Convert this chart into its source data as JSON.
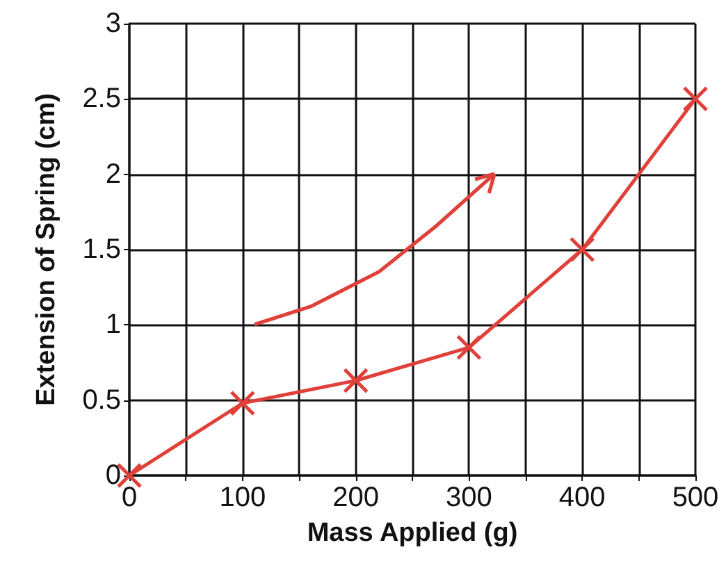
{
  "chart_data": {
    "type": "line",
    "xlabel": "Mass Applied (g)",
    "ylabel": "Extension of Spring (cm)",
    "x": [
      0,
      100,
      200,
      300,
      400,
      500
    ],
    "series": [
      {
        "color": "#e0403a",
        "values": [
          0,
          0.48,
          0.63,
          0.85,
          1.5,
          2.5
        ]
      }
    ],
    "xlim": [
      0,
      500
    ],
    "xticks": [
      0,
      {
        "value": 50,
        "label": null
      },
      100,
      {
        "value": 150,
        "label": null
      },
      200,
      {
        "value": 250,
        "label": null
      },
      300,
      {
        "value": 350,
        "label": null
      },
      400,
      {
        "value": 450,
        "label": null
      },
      500
    ],
    "ylim": [
      0,
      3
    ],
    "yticks": [
      0,
      0.5,
      1,
      1.5,
      2,
      2.5,
      3
    ],
    "grid": true,
    "marker": "cross",
    "line_style": "solid"
  }
}
